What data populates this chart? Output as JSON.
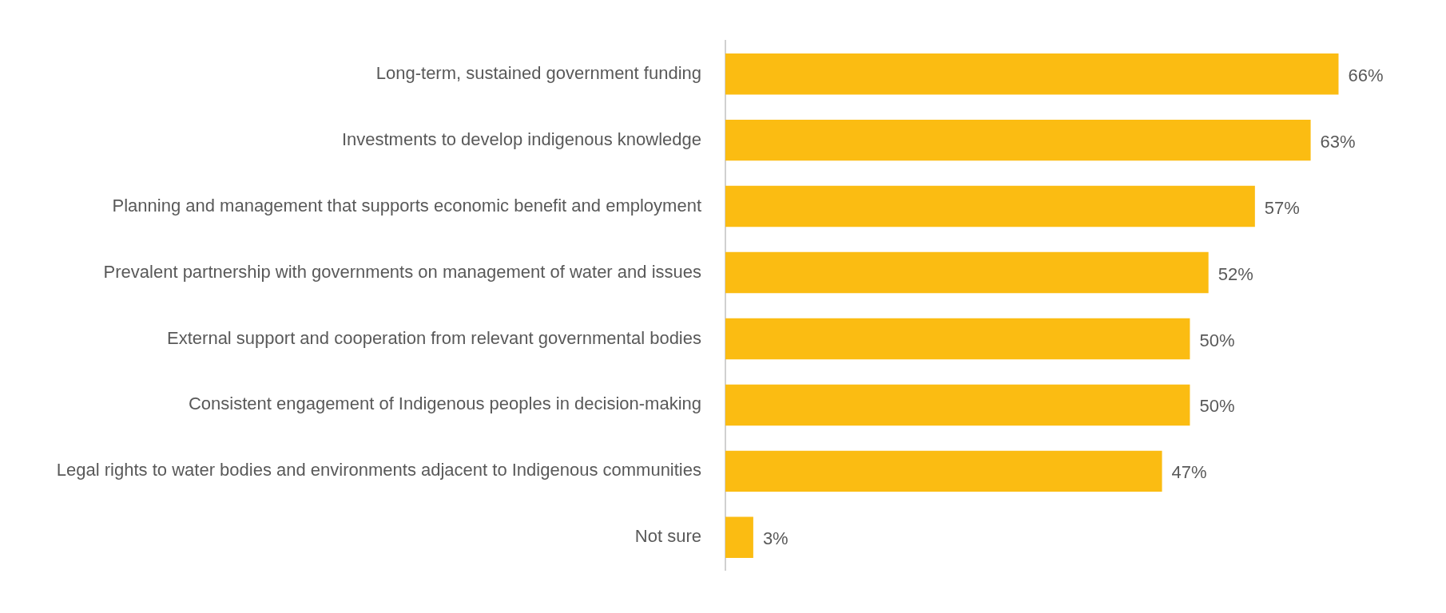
{
  "chart_data": {
    "type": "bar",
    "orientation": "horizontal",
    "categories": [
      "Long-term, sustained government funding",
      "Investments to develop indigenous knowledge",
      "Planning and management that supports economic benefit and employment",
      "Prevalent partnership with governments on management of water and issues",
      "External support and cooperation from relevant governmental bodies",
      "Consistent engagement of Indigenous peoples in decision-making",
      "Legal rights to water bodies and environments adjacent to Indigenous communities",
      "Not sure"
    ],
    "values": [
      66,
      63,
      57,
      52,
      50,
      50,
      47,
      3
    ],
    "value_labels": [
      "66%",
      "63%",
      "57%",
      "52%",
      "50%",
      "50%",
      "47%",
      "3%"
    ],
    "color": "#fbbc12",
    "legend": false
  }
}
